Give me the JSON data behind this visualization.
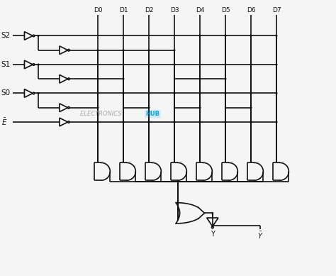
{
  "bg_color": "#f5f5f5",
  "line_color": "#111111",
  "lw": 1.2,
  "dot_r": 0.018,
  "buf_size": 0.13,
  "bubble_r": 0.028,
  "figsize": [
    4.74,
    3.89
  ],
  "dpi": 100,
  "xlim": [
    0,
    10.5
  ],
  "ylim": [
    0,
    8.5
  ],
  "input_labels": [
    "S2",
    "S1",
    "S0"
  ],
  "e_label": "$\\bar{E}$",
  "data_labels": [
    "D0",
    "D1",
    "D2",
    "D3",
    "D4",
    "D5",
    "D6",
    "D7"
  ],
  "output_label_y": "Y",
  "output_label_ybar": "$\\bar{Y}$",
  "watermark_text": "ELECTRONICS ",
  "watermark_hub": "HUB",
  "watermark_color": "#aaaaaa",
  "watermark_hub_color": "#00aaee"
}
